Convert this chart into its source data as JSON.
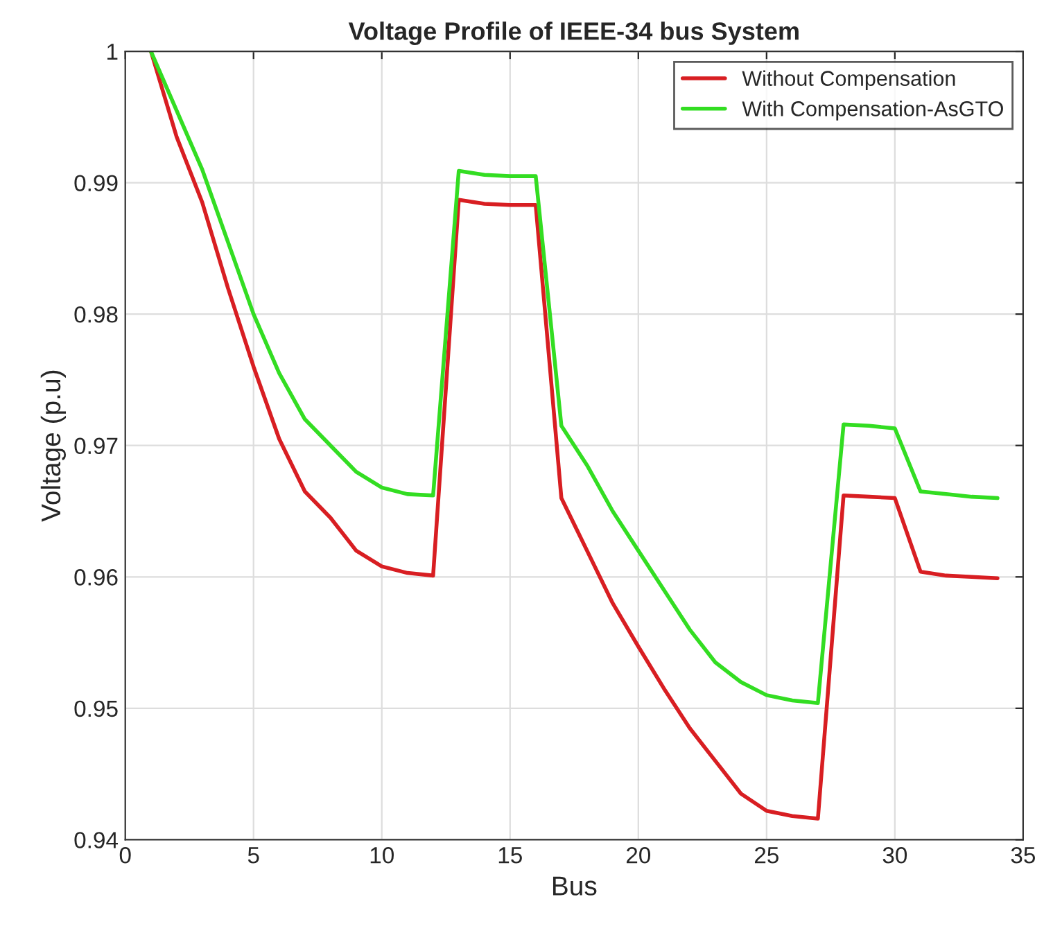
{
  "chart_data": {
    "type": "line",
    "title": "Voltage Profile of IEEE-34 bus System",
    "xlabel": "Bus",
    "ylabel": "Voltage (p.u)",
    "x": [
      1,
      2,
      3,
      4,
      5,
      6,
      7,
      8,
      9,
      10,
      11,
      12,
      13,
      14,
      15,
      16,
      17,
      18,
      19,
      20,
      21,
      22,
      23,
      24,
      25,
      26,
      27,
      28,
      29,
      30,
      31,
      32,
      33,
      34
    ],
    "series": [
      {
        "name": "Without Compensation",
        "color": "#d81e22",
        "values": [
          1.0,
          0.9935,
          0.9885,
          0.982,
          0.976,
          0.9705,
          0.9665,
          0.9645,
          0.962,
          0.9608,
          0.9603,
          0.9601,
          0.9887,
          0.9884,
          0.9883,
          0.9883,
          0.966,
          0.962,
          0.958,
          0.9547,
          0.9515,
          0.9485,
          0.946,
          0.9435,
          0.9422,
          0.9418,
          0.9416,
          0.9662,
          0.9661,
          0.966,
          0.9604,
          0.9601,
          0.96,
          0.9599
        ]
      },
      {
        "name": "With Compensation-AsGTO",
        "color": "#33dd22",
        "values": [
          1.0,
          0.9955,
          0.991,
          0.9855,
          0.98,
          0.9755,
          0.972,
          0.97,
          0.968,
          0.9668,
          0.9663,
          0.9662,
          0.9909,
          0.9906,
          0.9905,
          0.9905,
          0.9715,
          0.9685,
          0.965,
          0.962,
          0.959,
          0.956,
          0.9535,
          0.952,
          0.951,
          0.9506,
          0.9504,
          0.9716,
          0.9715,
          0.9713,
          0.9665,
          0.9663,
          0.9661,
          0.966
        ]
      }
    ],
    "xlim": [
      0,
      35
    ],
    "xticks": [
      0,
      5,
      10,
      15,
      20,
      25,
      30,
      35
    ],
    "ylim": [
      0.94,
      1
    ],
    "yticks": [
      0.94,
      0.95,
      0.96,
      0.97,
      0.98,
      0.99,
      {
        "value": 1,
        "label": "1"
      }
    ],
    "grid": true,
    "legend": "top right",
    "marker": "none",
    "line_style": "solid"
  }
}
